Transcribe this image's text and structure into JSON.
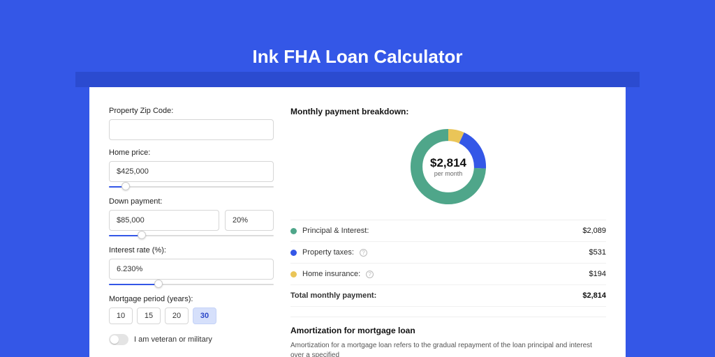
{
  "colors": {
    "page_bg": "#3457e7",
    "shadow_bar": "#2b4bd0",
    "card_bg": "#ffffff",
    "input_border": "#d6d6d6",
    "slider_track": "#dcdcdc",
    "slider_fill": "#3457e7",
    "period_active_bg": "#d6e0fb",
    "text_dark": "#111111",
    "text_mid": "#333333"
  },
  "title": "Ink FHA Loan Calculator",
  "form": {
    "zip": {
      "label": "Property Zip Code:",
      "value": ""
    },
    "home_price": {
      "label": "Home price:",
      "value": "$425,000",
      "slider_pct": 10
    },
    "down_payment": {
      "label": "Down payment:",
      "value": "$85,000",
      "pct_value": "20%",
      "slider_pct": 20
    },
    "interest": {
      "label": "Interest rate (%):",
      "value": "6.230%",
      "slider_pct": 30
    },
    "period": {
      "label": "Mortgage period (years):",
      "options": [
        "10",
        "15",
        "20",
        "30"
      ],
      "active_index": 3
    },
    "veteran": {
      "label": "I am veteran or military",
      "checked": false
    }
  },
  "breakdown": {
    "title": "Monthly payment breakdown:",
    "donut": {
      "center_amount": "$2,814",
      "center_sub": "per month",
      "ring_bg": "#f5f5f5",
      "segments": [
        {
          "label": "Principal & Interest:",
          "value": "$2,089",
          "color": "#4fa68a",
          "pct": 74.2,
          "info": false
        },
        {
          "label": "Property taxes:",
          "value": "$531",
          "color": "#3457e7",
          "pct": 18.9,
          "info": true
        },
        {
          "label": "Home insurance:",
          "value": "$194",
          "color": "#eac558",
          "pct": 6.9,
          "info": true
        }
      ],
      "total_label": "Total monthly payment:",
      "total_value": "$2,814"
    }
  },
  "amortization": {
    "title": "Amortization for mortgage loan",
    "body": "Amortization for a mortgage loan refers to the gradual repayment of the loan principal and interest over a specified"
  }
}
